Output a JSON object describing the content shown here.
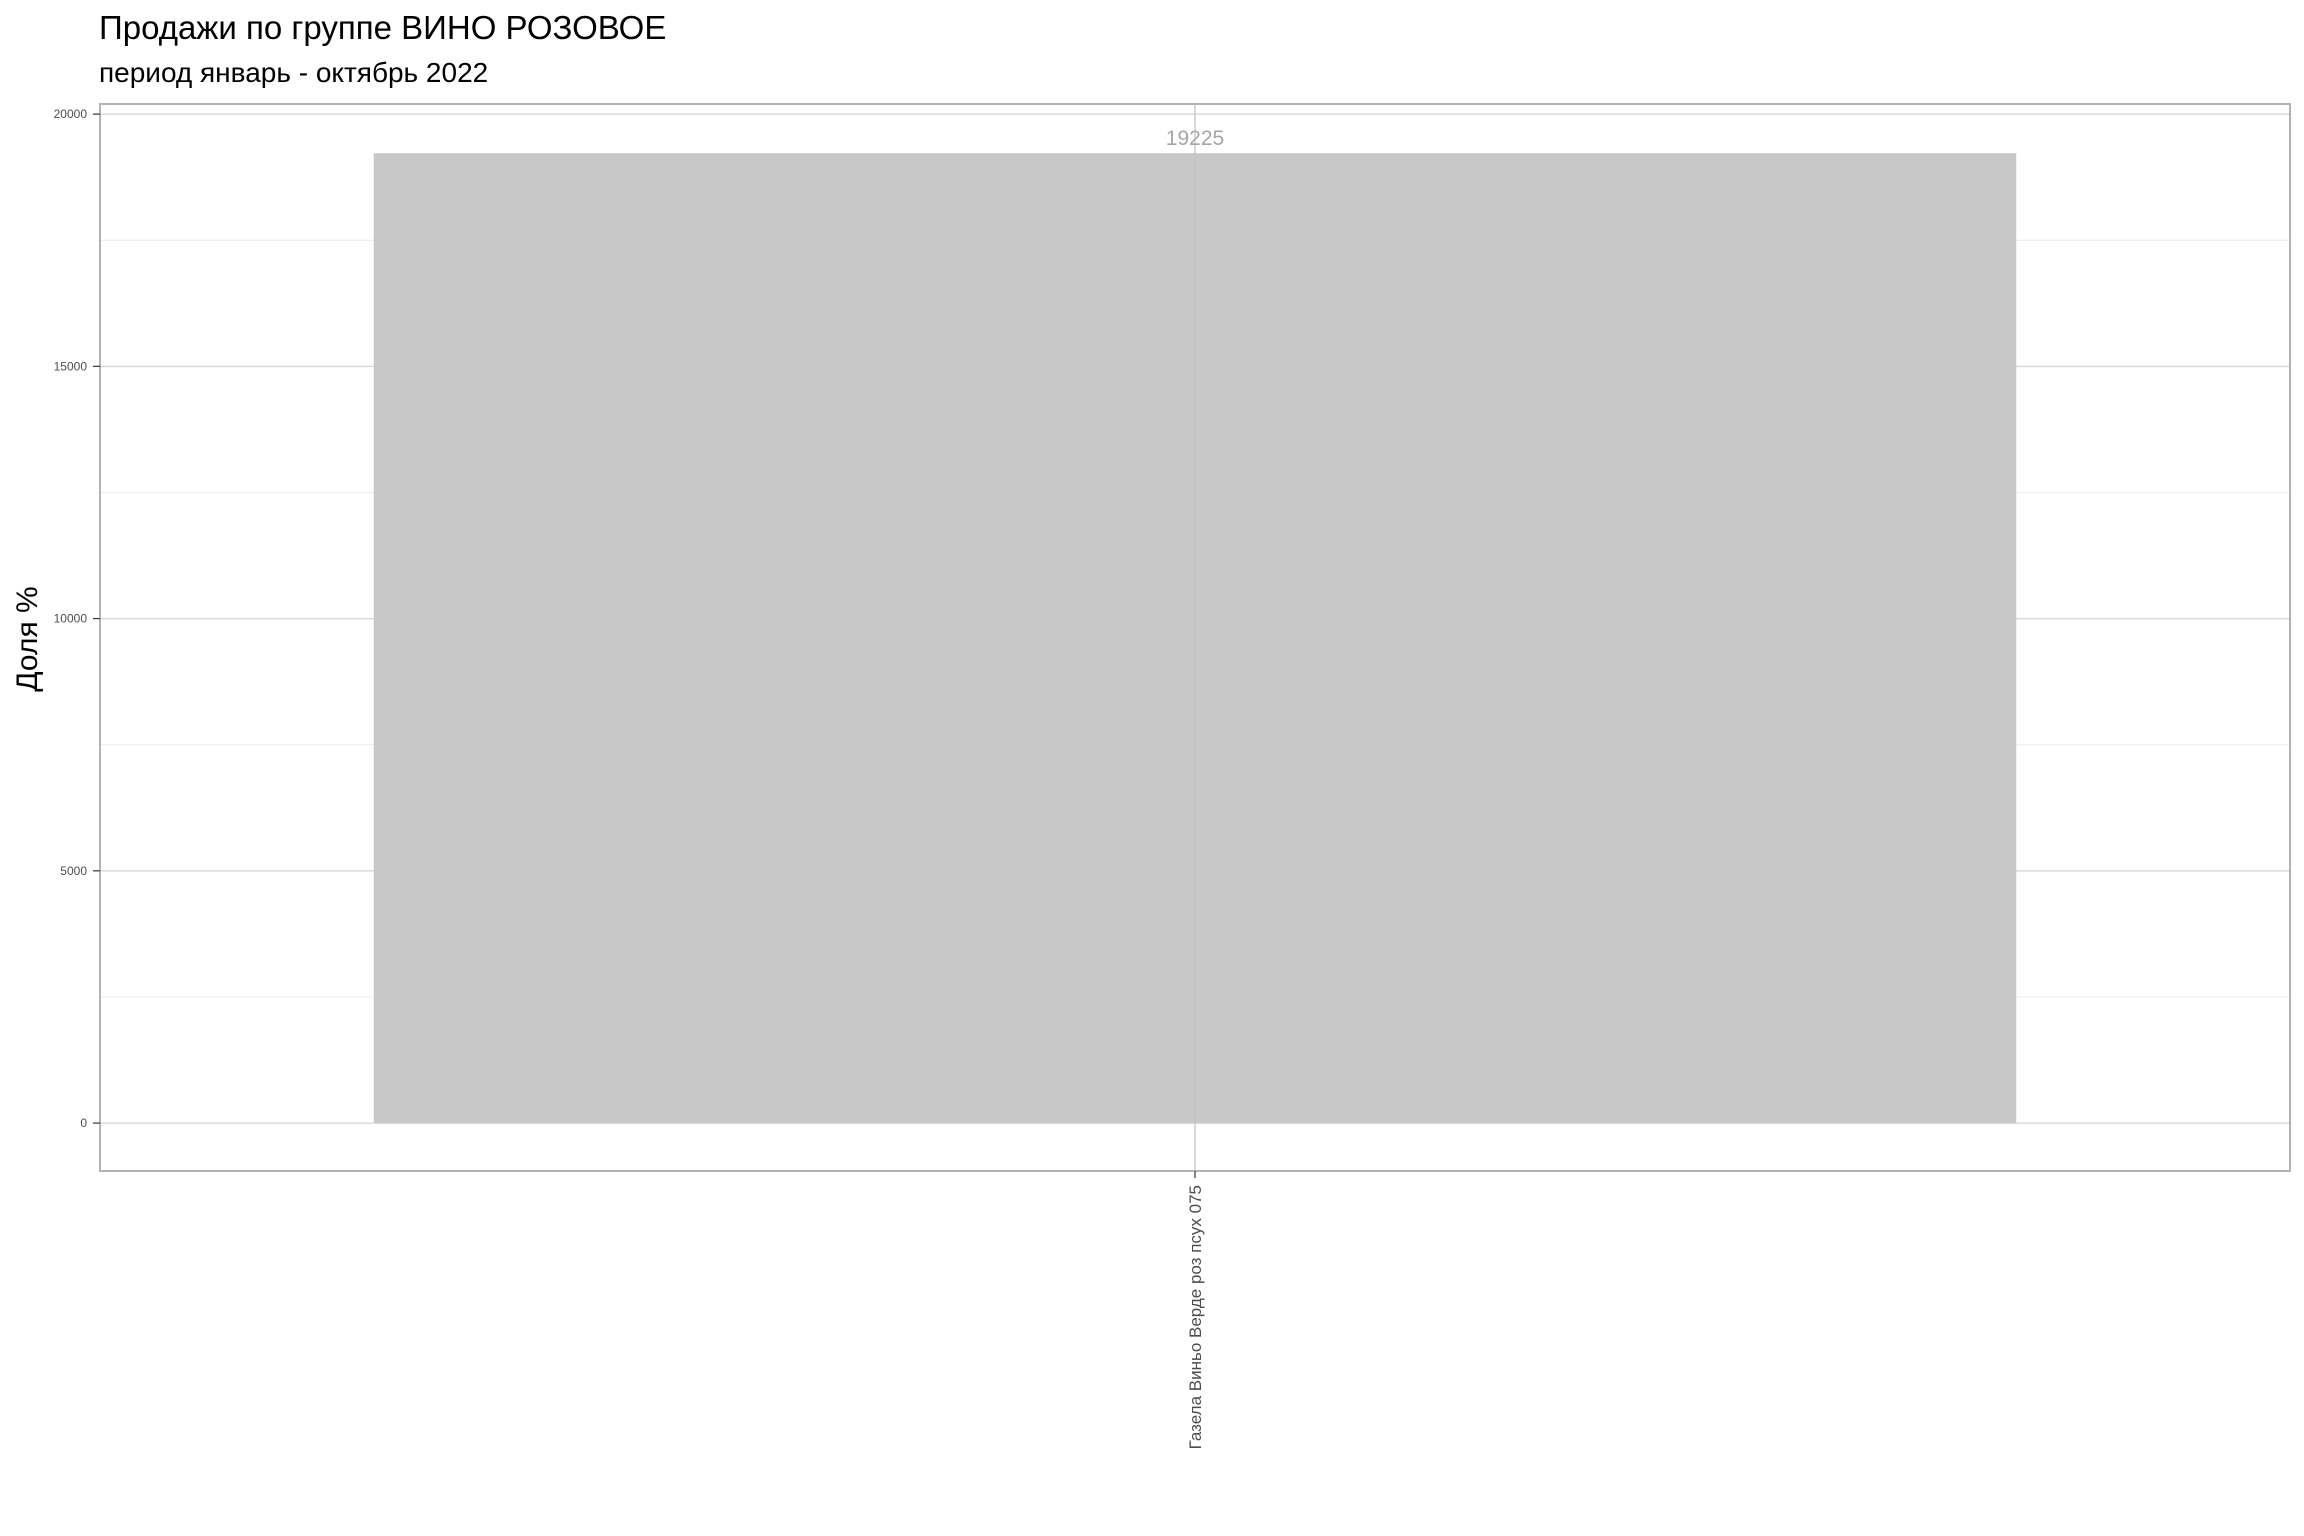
{
  "chart_data": {
    "type": "bar",
    "title": "Продажи по группе ВИНО РОЗОВОЕ",
    "subtitle": "период январь - октябрь 2022",
    "xlabel": "",
    "ylabel": "Доля %",
    "categories": [
      "Газела Виньо Верде роз псух  075"
    ],
    "values": [
      19225
    ],
    "data_labels": [
      "19225"
    ],
    "yticks": [
      0,
      5000,
      10000,
      15000,
      20000
    ],
    "ylim": [
      -950,
      20200
    ],
    "grid": true,
    "legend": "none",
    "colors": {
      "bar": "#c8c8c8",
      "grid_major": "#d9d9d9",
      "grid_minor": "#ececec",
      "panel_border": "#b3b3b3",
      "data_label": "#a6a6a6"
    }
  }
}
